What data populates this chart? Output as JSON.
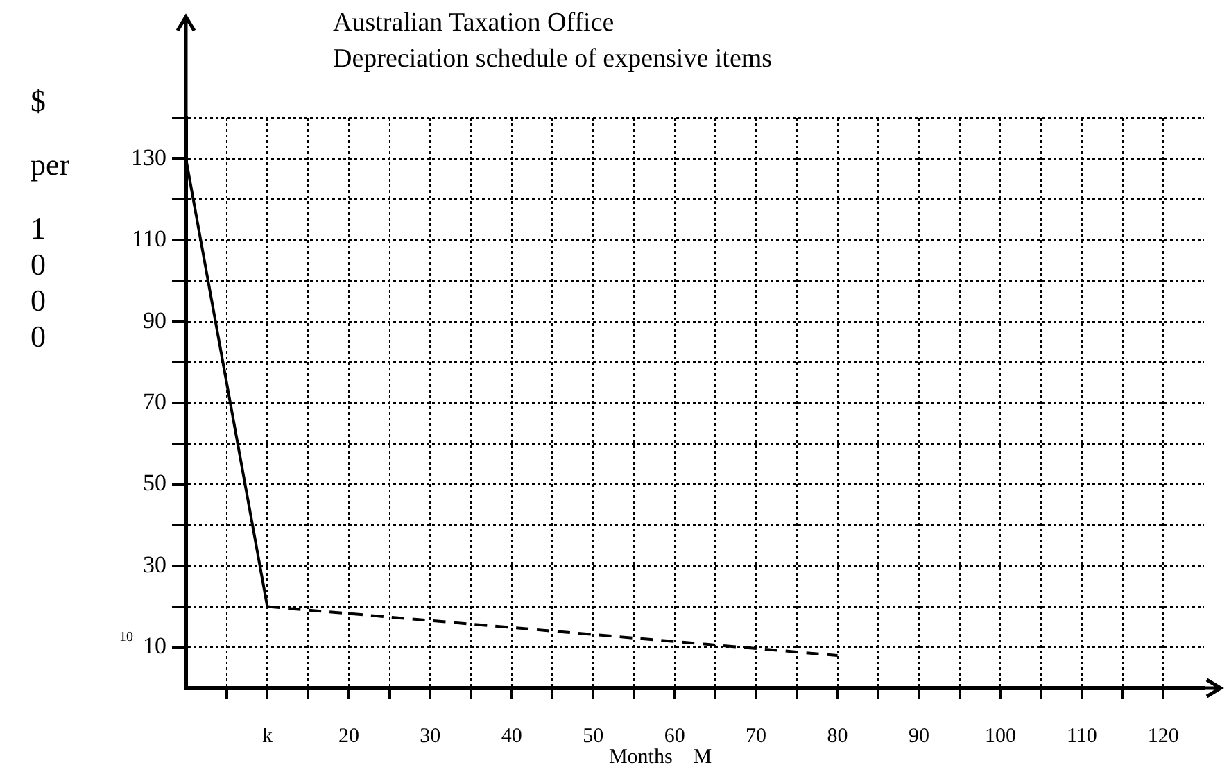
{
  "chart_data": {
    "type": "line",
    "title": "Australian Taxation Office",
    "subtitle": "Depreciation schedule of expensive items",
    "xlabel": "Months    M",
    "ylabel": "$ per 1000",
    "annotations": [
      "10"
    ],
    "xlim": [
      0,
      125
    ],
    "ylim": [
      0,
      140
    ],
    "xticks": [
      {
        "value": 5,
        "label": null
      },
      {
        "value": 10,
        "label": "k"
      },
      {
        "value": 15,
        "label": null
      },
      20,
      {
        "value": 25,
        "label": null
      },
      30,
      {
        "value": 35,
        "label": null
      },
      40,
      {
        "value": 45,
        "label": null
      },
      50,
      {
        "value": 55,
        "label": null
      },
      60,
      {
        "value": 65,
        "label": null
      },
      70,
      {
        "value": 75,
        "label": null
      },
      80,
      {
        "value": 85,
        "label": null
      },
      90,
      {
        "value": 95,
        "label": null
      },
      100,
      {
        "value": 105,
        "label": null
      },
      110,
      {
        "value": 115,
        "label": null
      },
      120
    ],
    "yticks": [
      10,
      {
        "value": 20,
        "label": null
      },
      30,
      {
        "value": 40,
        "label": null
      },
      50,
      {
        "value": 60,
        "label": null
      },
      70,
      {
        "value": 80,
        "label": null
      },
      90,
      {
        "value": 100,
        "label": null
      },
      110,
      {
        "value": 120,
        "label": null
      },
      130,
      {
        "value": 140,
        "label": null
      }
    ],
    "grid": true,
    "legend": false,
    "marker": "none",
    "series": [
      {
        "color": "#000000",
        "line_style": "solid",
        "x": [
          0,
          10
        ],
        "values": [
          130,
          20
        ]
      },
      {
        "color": "#000000",
        "line_style": "dashed",
        "x": [
          10,
          80
        ],
        "values": [
          20,
          8
        ]
      }
    ]
  }
}
